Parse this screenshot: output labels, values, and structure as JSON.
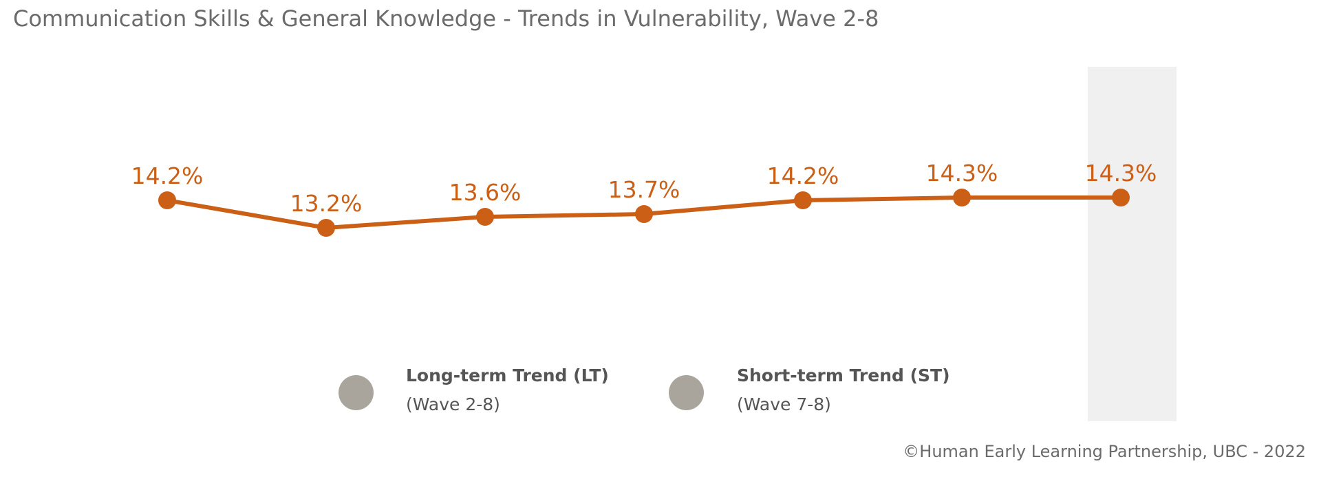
{
  "title": "Communication Skills & General Knowledge - Trends in Vulnerability, Wave 2-8",
  "credit": "©Human Early Learning Partnership, UBC - 2022",
  "colors": {
    "line": "#cc5f16",
    "highlight_band": "#f0f0f0",
    "legend_dot": "#aaa59c",
    "text": "#6b6b6b"
  },
  "legend": [
    {
      "label": "Long-term Trend (LT)",
      "sub": "(Wave 2-8)"
    },
    {
      "label": "Short-term Trend (ST)",
      "sub": "(Wave 7-8)"
    }
  ],
  "chart_data": {
    "type": "line",
    "title": "Communication Skills & General Knowledge - Trends in Vulnerability, Wave 2-8",
    "x": [
      1,
      2,
      3,
      4,
      5,
      6,
      7
    ],
    "series": [
      {
        "values": [
          14.2,
          13.2,
          13.6,
          13.7,
          14.2,
          14.3,
          14.3
        ],
        "labels": [
          "14.2%",
          "13.2%",
          "13.6%",
          "13.7%",
          "14.2%",
          "14.3%",
          "14.3%"
        ]
      }
    ],
    "highlighted_point_index": 6,
    "grid": false,
    "legend_position": "bottom"
  }
}
